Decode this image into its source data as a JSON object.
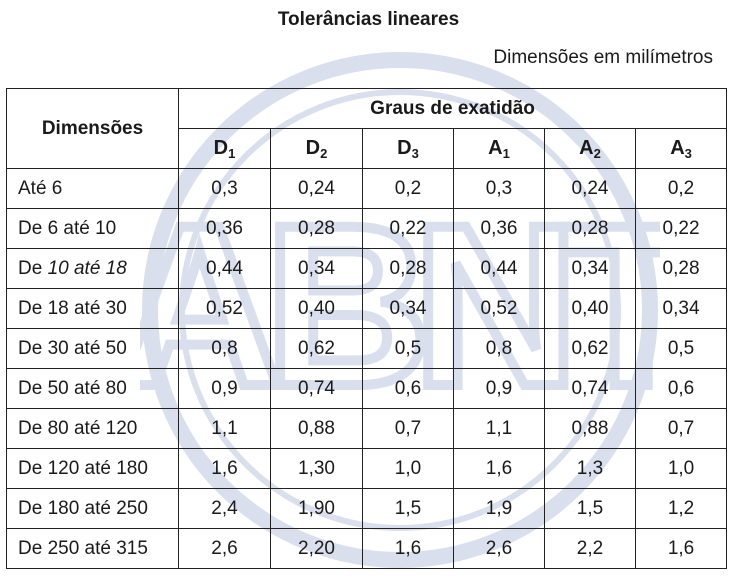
{
  "title": "Tolerâncias lineares",
  "subtitle": "Dimensões em milímetros",
  "table": {
    "row_header": "Dimensões",
    "group_header": "Graus de exatidão",
    "grades": [
      {
        "letter": "D",
        "index": "1"
      },
      {
        "letter": "D",
        "index": "2"
      },
      {
        "letter": "D",
        "index": "3"
      },
      {
        "letter": "A",
        "index": "1"
      },
      {
        "letter": "A",
        "index": "2"
      },
      {
        "letter": "A",
        "index": "3"
      }
    ],
    "rows": [
      {
        "dim_prefix": "Até 6",
        "dim_italic": "",
        "values": [
          "0,3",
          "0,24",
          "0,2",
          "0,3",
          "0,24",
          "0,2"
        ]
      },
      {
        "dim_prefix": "De 6 até 10",
        "dim_italic": "",
        "values": [
          "0,36",
          "0,28",
          "0,22",
          "0,36",
          "0,28",
          "0,22"
        ]
      },
      {
        "dim_prefix": "De ",
        "dim_italic": "10 até 18",
        "values": [
          "0,44",
          "0,34",
          "0,28",
          "0,44",
          "0,34",
          "0,28"
        ]
      },
      {
        "dim_prefix": "De 18 até 30",
        "dim_italic": "",
        "values": [
          "0,52",
          "0,40",
          "0,34",
          "0,52",
          "0,40",
          "0,34"
        ]
      },
      {
        "dim_prefix": "De 30 até 50",
        "dim_italic": "",
        "values": [
          "0,8",
          "0,62",
          "0,5",
          "0,8",
          "0,62",
          "0,5"
        ]
      },
      {
        "dim_prefix": "De 50 até 80",
        "dim_italic": "",
        "values": [
          "0,9",
          "0,74",
          "0,6",
          "0,9",
          "0,74",
          "0,6"
        ]
      },
      {
        "dim_prefix": "De 80 até 120",
        "dim_italic": "",
        "values": [
          "1,1",
          "0,88",
          "0,7",
          "1,1",
          "0,88",
          "0,7"
        ]
      },
      {
        "dim_prefix": "De 120 até 180",
        "dim_italic": "",
        "values": [
          "1,6",
          "1,30",
          "1,0",
          "1,6",
          "1,3",
          "1,0"
        ]
      },
      {
        "dim_prefix": "De 180 até 250",
        "dim_italic": "",
        "values": [
          "2,4",
          "1,90",
          "1,5",
          "1,9",
          "1,5",
          "1,2"
        ]
      },
      {
        "dim_prefix": "De 250 até 315",
        "dim_italic": "",
        "values": [
          "2,6",
          "2,20",
          "1,6",
          "2,6",
          "2,2",
          "1,6"
        ]
      }
    ]
  },
  "watermark": {
    "text": "ABNT",
    "color": "#1f3f9a"
  }
}
